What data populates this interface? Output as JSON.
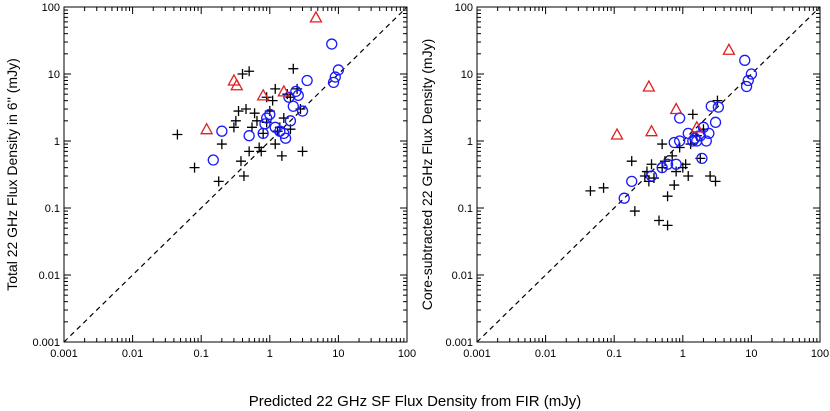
{
  "figure": {
    "shared_xlabel": "Predicted 22 GHz SF Flux Density from FIR (mJy)"
  },
  "colors": {
    "plus": "#000000",
    "circle": "#1a1aff",
    "triangle": "#e02020",
    "line": "#000000"
  },
  "chart_data": [
    {
      "type": "scatter",
      "title": "",
      "xlabel": "Predicted 22 GHz SF Flux Density from FIR (mJy)",
      "ylabel": "Total 22 GHz Flux Density in 6'' (mJy)",
      "xscale": "log",
      "yscale": "log",
      "xlim": [
        0.001,
        100
      ],
      "ylim": [
        0.001,
        100
      ],
      "x_tick_labels": [
        "0.001",
        "0.01",
        "0.1",
        "1",
        "10",
        "100"
      ],
      "y_tick_labels": [
        "0.001",
        "0.01",
        "0.1",
        "1",
        "10",
        "100"
      ],
      "reference_line": "y = x (dashed)",
      "series": [
        {
          "name": "plus",
          "marker": "plus",
          "points": [
            [
              0.045,
              1.25
            ],
            [
              0.08,
              0.4
            ],
            [
              0.18,
              0.25
            ],
            [
              0.2,
              0.9
            ],
            [
              0.3,
              1.6
            ],
            [
              0.32,
              2.0
            ],
            [
              0.35,
              2.8
            ],
            [
              0.38,
              0.5
            ],
            [
              0.4,
              10.0
            ],
            [
              0.42,
              0.3
            ],
            [
              0.45,
              3.0
            ],
            [
              0.5,
              11.0
            ],
            [
              0.5,
              0.7
            ],
            [
              0.55,
              1.6
            ],
            [
              0.6,
              2.6
            ],
            [
              0.65,
              2.0
            ],
            [
              0.7,
              0.8
            ],
            [
              0.75,
              0.7
            ],
            [
              0.8,
              1.3
            ],
            [
              0.9,
              1.9
            ],
            [
              1.0,
              2.8
            ],
            [
              1.1,
              4.0
            ],
            [
              1.2,
              6.0
            ],
            [
              1.3,
              1.4
            ],
            [
              1.4,
              1.6
            ],
            [
              1.5,
              0.6
            ],
            [
              1.6,
              2.2
            ],
            [
              1.8,
              5.0
            ],
            [
              2.0,
              4.5
            ],
            [
              2.2,
              12.0
            ],
            [
              2.5,
              6.0
            ],
            [
              2.8,
              3.0
            ],
            [
              3.0,
              0.7
            ],
            [
              1.2,
              0.9
            ],
            [
              0.9,
              4.5
            ],
            [
              2.0,
              1.5
            ]
          ]
        },
        {
          "name": "circle",
          "marker": "circle",
          "points": [
            [
              0.15,
              0.52
            ],
            [
              0.2,
              1.4
            ],
            [
              0.5,
              1.2
            ],
            [
              0.8,
              1.3
            ],
            [
              0.85,
              1.8
            ],
            [
              0.9,
              2.2
            ],
            [
              1.0,
              2.5
            ],
            [
              1.2,
              1.6
            ],
            [
              1.4,
              1.4
            ],
            [
              1.6,
              1.3
            ],
            [
              1.7,
              1.1
            ],
            [
              1.9,
              4.5
            ],
            [
              2.0,
              2.0
            ],
            [
              2.2,
              3.3
            ],
            [
              2.4,
              5.5
            ],
            [
              2.6,
              4.8
            ],
            [
              3.0,
              2.8
            ],
            [
              3.5,
              8.0
            ],
            [
              8.0,
              28.0
            ],
            [
              8.5,
              7.5
            ],
            [
              9.0,
              9.0
            ],
            [
              10.0,
              11.5
            ]
          ]
        },
        {
          "name": "triangle",
          "marker": "triangle",
          "points": [
            [
              0.12,
              1.5
            ],
            [
              0.3,
              8.0
            ],
            [
              0.33,
              6.8
            ],
            [
              0.8,
              4.8
            ],
            [
              1.6,
              5.5
            ],
            [
              4.7,
              70.0
            ]
          ]
        }
      ]
    },
    {
      "type": "scatter",
      "title": "",
      "xlabel": "Predicted 22 GHz SF Flux Density from FIR (mJy)",
      "ylabel": "Core-subtracted 22 GHz Flux Density (mJy)",
      "xscale": "log",
      "yscale": "log",
      "xlim": [
        0.001,
        100
      ],
      "ylim": [
        0.001,
        100
      ],
      "x_tick_labels": [
        "0.001",
        "0.01",
        "0.1",
        "1",
        "10",
        "100"
      ],
      "y_tick_labels": [
        "0.001",
        "0.01",
        "0.1",
        "1",
        "10",
        "100"
      ],
      "reference_line": "y = x (dashed)",
      "series": [
        {
          "name": "plus",
          "marker": "plus",
          "points": [
            [
              0.045,
              0.18
            ],
            [
              0.07,
              0.2
            ],
            [
              0.18,
              0.5
            ],
            [
              0.2,
              0.09
            ],
            [
              0.28,
              0.3
            ],
            [
              0.3,
              0.35
            ],
            [
              0.32,
              0.25
            ],
            [
              0.35,
              0.45
            ],
            [
              0.38,
              0.28
            ],
            [
              0.45,
              0.065
            ],
            [
              0.5,
              0.4
            ],
            [
              0.55,
              0.5
            ],
            [
              0.6,
              0.055
            ],
            [
              0.6,
              0.15
            ],
            [
              0.7,
              0.6
            ],
            [
              0.75,
              0.22
            ],
            [
              0.8,
              0.35
            ],
            [
              0.9,
              0.8
            ],
            [
              1.0,
              0.4
            ],
            [
              1.1,
              0.45
            ],
            [
              1.2,
              0.3
            ],
            [
              1.3,
              0.9
            ],
            [
              1.4,
              2.5
            ],
            [
              1.6,
              1.2
            ],
            [
              2.0,
              1.5
            ],
            [
              2.5,
              0.3
            ],
            [
              3.0,
              0.25
            ],
            [
              3.2,
              4.0
            ],
            [
              0.5,
              0.9
            ],
            [
              1.8,
              0.55
            ]
          ]
        },
        {
          "name": "circle",
          "marker": "circle",
          "points": [
            [
              0.14,
              0.14
            ],
            [
              0.18,
              0.25
            ],
            [
              0.35,
              0.3
            ],
            [
              0.5,
              0.4
            ],
            [
              0.6,
              0.45
            ],
            [
              0.75,
              0.95
            ],
            [
              0.8,
              0.45
            ],
            [
              0.9,
              1.0
            ],
            [
              1.2,
              1.3
            ],
            [
              1.4,
              1.0
            ],
            [
              1.5,
              1.1
            ],
            [
              1.6,
              1.0
            ],
            [
              1.8,
              1.2
            ],
            [
              2.0,
              1.6
            ],
            [
              2.2,
              1.0
            ],
            [
              2.4,
              1.3
            ],
            [
              2.6,
              3.3
            ],
            [
              3.0,
              1.9
            ],
            [
              3.3,
              3.2
            ],
            [
              8.0,
              16.0
            ],
            [
              8.5,
              6.5
            ],
            [
              9.0,
              8.0
            ],
            [
              10.0,
              10.0
            ],
            [
              1.9,
              0.55
            ],
            [
              0.9,
              2.2
            ]
          ]
        },
        {
          "name": "triangle",
          "marker": "triangle",
          "points": [
            [
              0.11,
              1.25
            ],
            [
              0.32,
              6.5
            ],
            [
              0.35,
              1.4
            ],
            [
              0.8,
              3.0
            ],
            [
              1.6,
              1.6
            ],
            [
              4.7,
              23.0
            ]
          ]
        }
      ]
    }
  ]
}
